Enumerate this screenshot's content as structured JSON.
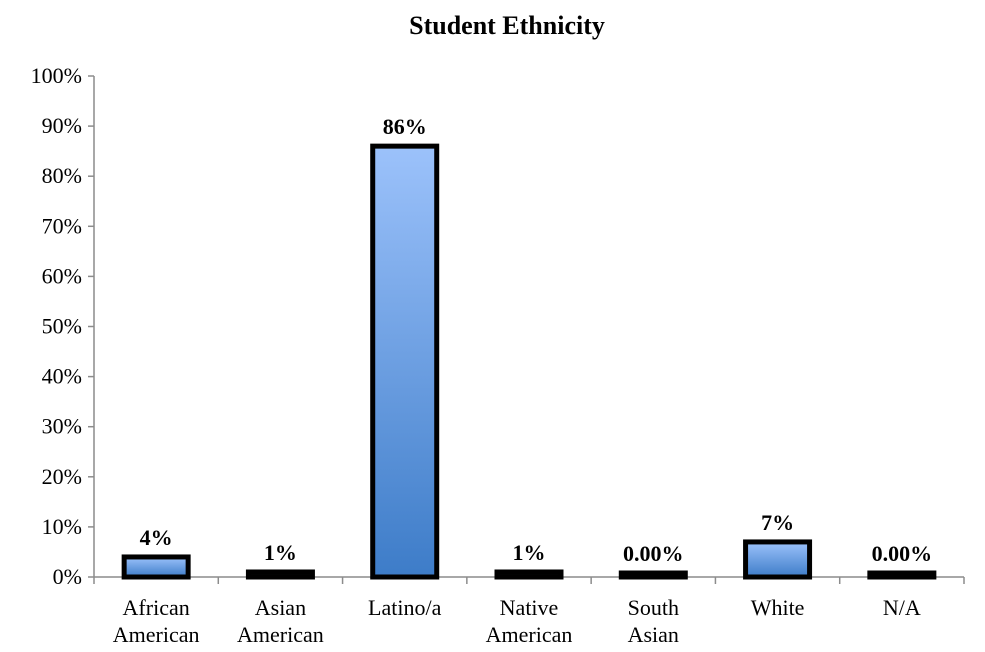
{
  "chart_data": {
    "type": "bar",
    "title": "Student Ethnicity",
    "xlabel": "",
    "ylabel": "",
    "ylim": [
      0,
      100
    ],
    "ytick_step": 10,
    "ytick_suffix": "%",
    "categories": [
      [
        "African",
        "American"
      ],
      [
        "Asian",
        "American"
      ],
      [
        "Latino/a"
      ],
      [
        "Native",
        "American"
      ],
      [
        "South",
        "Asian"
      ],
      [
        "White"
      ],
      [
        "N/A"
      ]
    ],
    "values": [
      4,
      1,
      86,
      1,
      0,
      7,
      0
    ],
    "data_labels": [
      "4%",
      "1%",
      "86%",
      "1%",
      "0.00%",
      "7%",
      "0.00%"
    ],
    "grid": false,
    "legend": "none",
    "colors": {
      "bar_top": "#9cc2fb",
      "bar_bottom": "#3d7cc8",
      "bar_border": "#000000",
      "axis": "#8c8c8c"
    }
  }
}
